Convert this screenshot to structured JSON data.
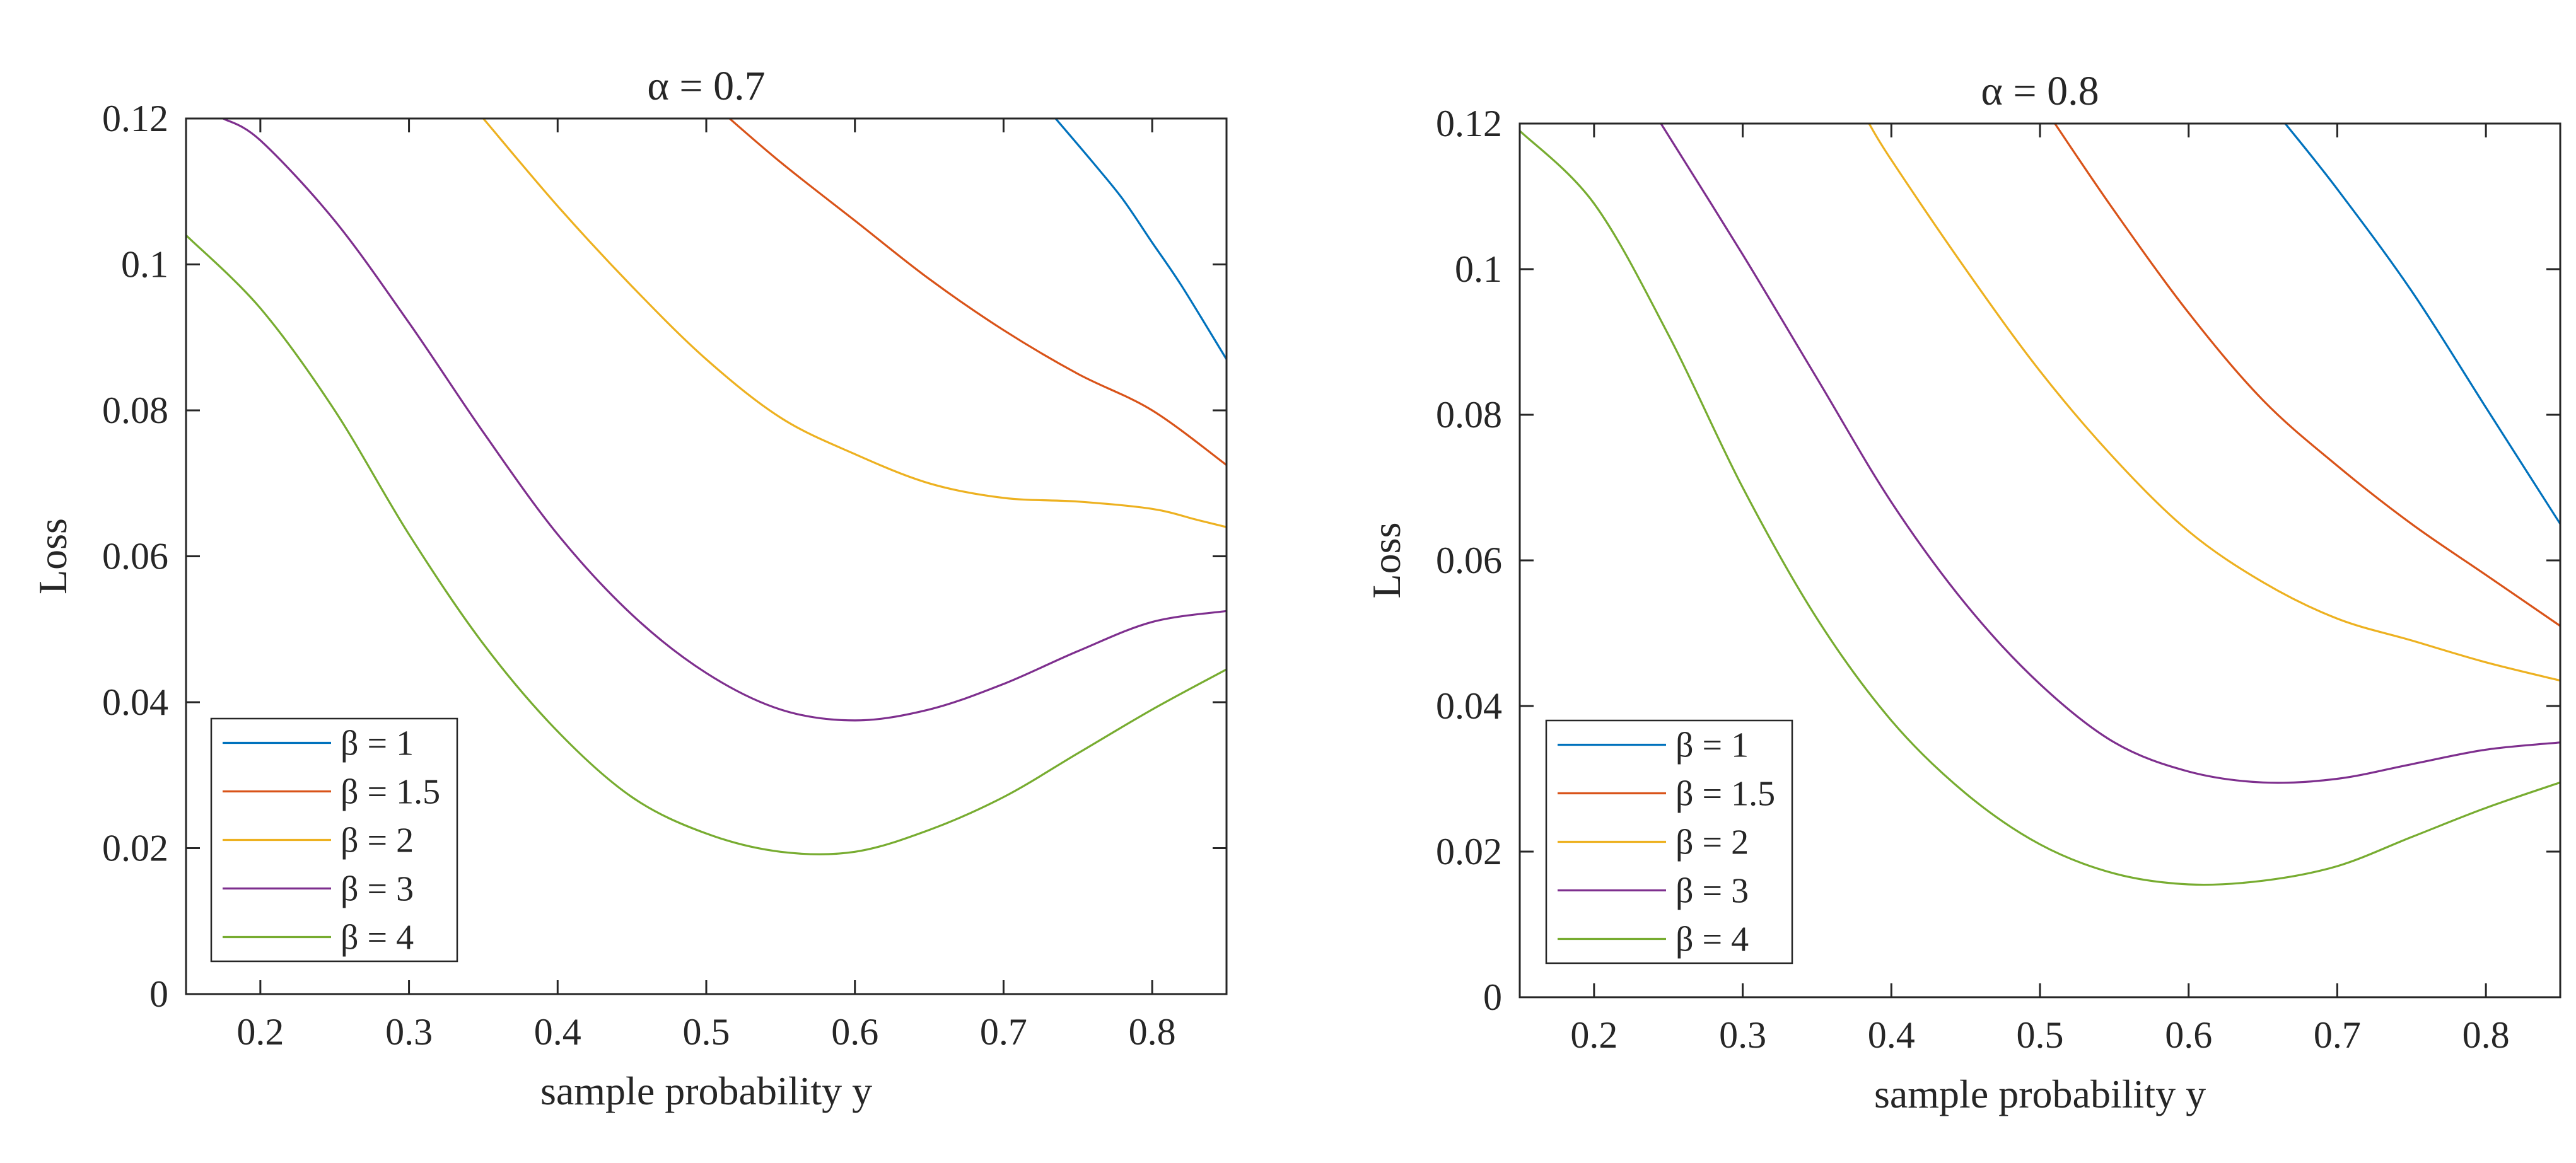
{
  "chart_data": [
    {
      "type": "line",
      "title": "α = 0.7",
      "xlabel": "sample probability y",
      "ylabel": "Loss",
      "xlim": [
        0.15,
        0.85
      ],
      "ylim": [
        0,
        0.12
      ],
      "xticks": [
        0.2,
        0.3,
        0.4,
        0.5,
        0.6,
        0.7,
        0.8
      ],
      "xtick_labels": [
        "0.2",
        "0.3",
        "0.4",
        "0.5",
        "0.6",
        "0.7",
        "0.8"
      ],
      "yticks": [
        0,
        0.02,
        0.04,
        0.06,
        0.08,
        0.1,
        0.12
      ],
      "ytick_labels": [
        "0",
        "0.02",
        "0.04",
        "0.06",
        "0.08",
        "0.1",
        "0.12"
      ],
      "grid": false,
      "legend_position": "bottom-left",
      "series": [
        {
          "name": "β = 1",
          "color": "#0072BD",
          "x": [
            0.735,
            0.76,
            0.78,
            0.8,
            0.82,
            0.85
          ],
          "y": [
            0.12,
            0.114,
            0.109,
            0.103,
            0.097,
            0.087
          ]
        },
        {
          "name": "β = 1.5",
          "color": "#D95319",
          "x": [
            0.51,
            0.55,
            0.6,
            0.65,
            0.7,
            0.75,
            0.8,
            0.85
          ],
          "y": [
            0.121,
            0.114,
            0.106,
            0.098,
            0.091,
            0.085,
            0.08,
            0.0725
          ]
        },
        {
          "name": "β = 2",
          "color": "#EDB120",
          "x": [
            0.35,
            0.4,
            0.45,
            0.5,
            0.55,
            0.6,
            0.65,
            0.7,
            0.75,
            0.8,
            0.83,
            0.85
          ],
          "y": [
            0.12,
            0.108,
            0.097,
            0.087,
            0.079,
            0.074,
            0.07,
            0.068,
            0.0675,
            0.0665,
            0.065,
            0.064
          ]
        },
        {
          "name": "β = 3",
          "color": "#7E2F8E",
          "x": [
            0.175,
            0.2,
            0.25,
            0.3,
            0.35,
            0.4,
            0.45,
            0.5,
            0.55,
            0.6,
            0.65,
            0.7,
            0.75,
            0.8,
            0.85
          ],
          "y": [
            0.12,
            0.117,
            0.106,
            0.092,
            0.077,
            0.063,
            0.052,
            0.044,
            0.039,
            0.0375,
            0.039,
            0.0425,
            0.047,
            0.051,
            0.0525
          ]
        },
        {
          "name": "β = 4",
          "color": "#77AC30",
          "x": [
            0.15,
            0.2,
            0.25,
            0.3,
            0.35,
            0.4,
            0.45,
            0.5,
            0.55,
            0.6,
            0.65,
            0.7,
            0.75,
            0.8,
            0.85
          ],
          "y": [
            0.104,
            0.094,
            0.08,
            0.063,
            0.048,
            0.036,
            0.027,
            0.022,
            0.0195,
            0.0195,
            0.0225,
            0.027,
            0.033,
            0.039,
            0.0445
          ]
        }
      ]
    },
    {
      "type": "line",
      "title": "α = 0.8",
      "xlabel": "sample probability y",
      "ylabel": "Loss",
      "xlim": [
        0.15,
        0.85
      ],
      "ylim": [
        0,
        0.12
      ],
      "xticks": [
        0.2,
        0.3,
        0.4,
        0.5,
        0.6,
        0.7,
        0.8
      ],
      "xtick_labels": [
        "0.2",
        "0.3",
        "0.4",
        "0.5",
        "0.6",
        "0.7",
        "0.8"
      ],
      "yticks": [
        0,
        0.02,
        0.04,
        0.06,
        0.08,
        0.1,
        0.12
      ],
      "ytick_labels": [
        "0",
        "0.02",
        "0.04",
        "0.06",
        "0.08",
        "0.1",
        "0.12"
      ],
      "grid": false,
      "legend_position": "bottom-left",
      "series": [
        {
          "name": "β = 1",
          "color": "#0072BD",
          "x": [
            0.665,
            0.7,
            0.75,
            0.8,
            0.85
          ],
          "y": [
            0.12,
            0.111,
            0.097,
            0.081,
            0.065
          ]
        },
        {
          "name": "β = 1.5",
          "color": "#D95319",
          "x": [
            0.51,
            0.55,
            0.6,
            0.65,
            0.7,
            0.75,
            0.8,
            0.85
          ],
          "y": [
            0.12,
            0.108,
            0.094,
            0.082,
            0.073,
            0.065,
            0.058,
            0.051
          ]
        },
        {
          "name": "β = 2",
          "color": "#EDB120",
          "x": [
            0.385,
            0.4,
            0.45,
            0.5,
            0.55,
            0.6,
            0.65,
            0.7,
            0.75,
            0.8,
            0.85
          ],
          "y": [
            0.12,
            0.115,
            0.1,
            0.086,
            0.074,
            0.064,
            0.057,
            0.052,
            0.049,
            0.046,
            0.0435
          ]
        },
        {
          "name": "β = 3",
          "color": "#7E2F8E",
          "x": [
            0.245,
            0.3,
            0.35,
            0.4,
            0.45,
            0.5,
            0.55,
            0.6,
            0.65,
            0.7,
            0.75,
            0.8,
            0.85
          ],
          "y": [
            0.12,
            0.102,
            0.085,
            0.068,
            0.054,
            0.043,
            0.035,
            0.031,
            0.0295,
            0.03,
            0.032,
            0.034,
            0.035
          ]
        },
        {
          "name": "β = 4",
          "color": "#77AC30",
          "x": [
            0.15,
            0.2,
            0.25,
            0.3,
            0.35,
            0.4,
            0.45,
            0.5,
            0.55,
            0.6,
            0.65,
            0.7,
            0.75,
            0.8,
            0.85
          ],
          "y": [
            0.119,
            0.109,
            0.091,
            0.07,
            0.052,
            0.038,
            0.028,
            0.021,
            0.017,
            0.0155,
            0.016,
            0.018,
            0.022,
            0.026,
            0.0295
          ]
        }
      ]
    }
  ]
}
